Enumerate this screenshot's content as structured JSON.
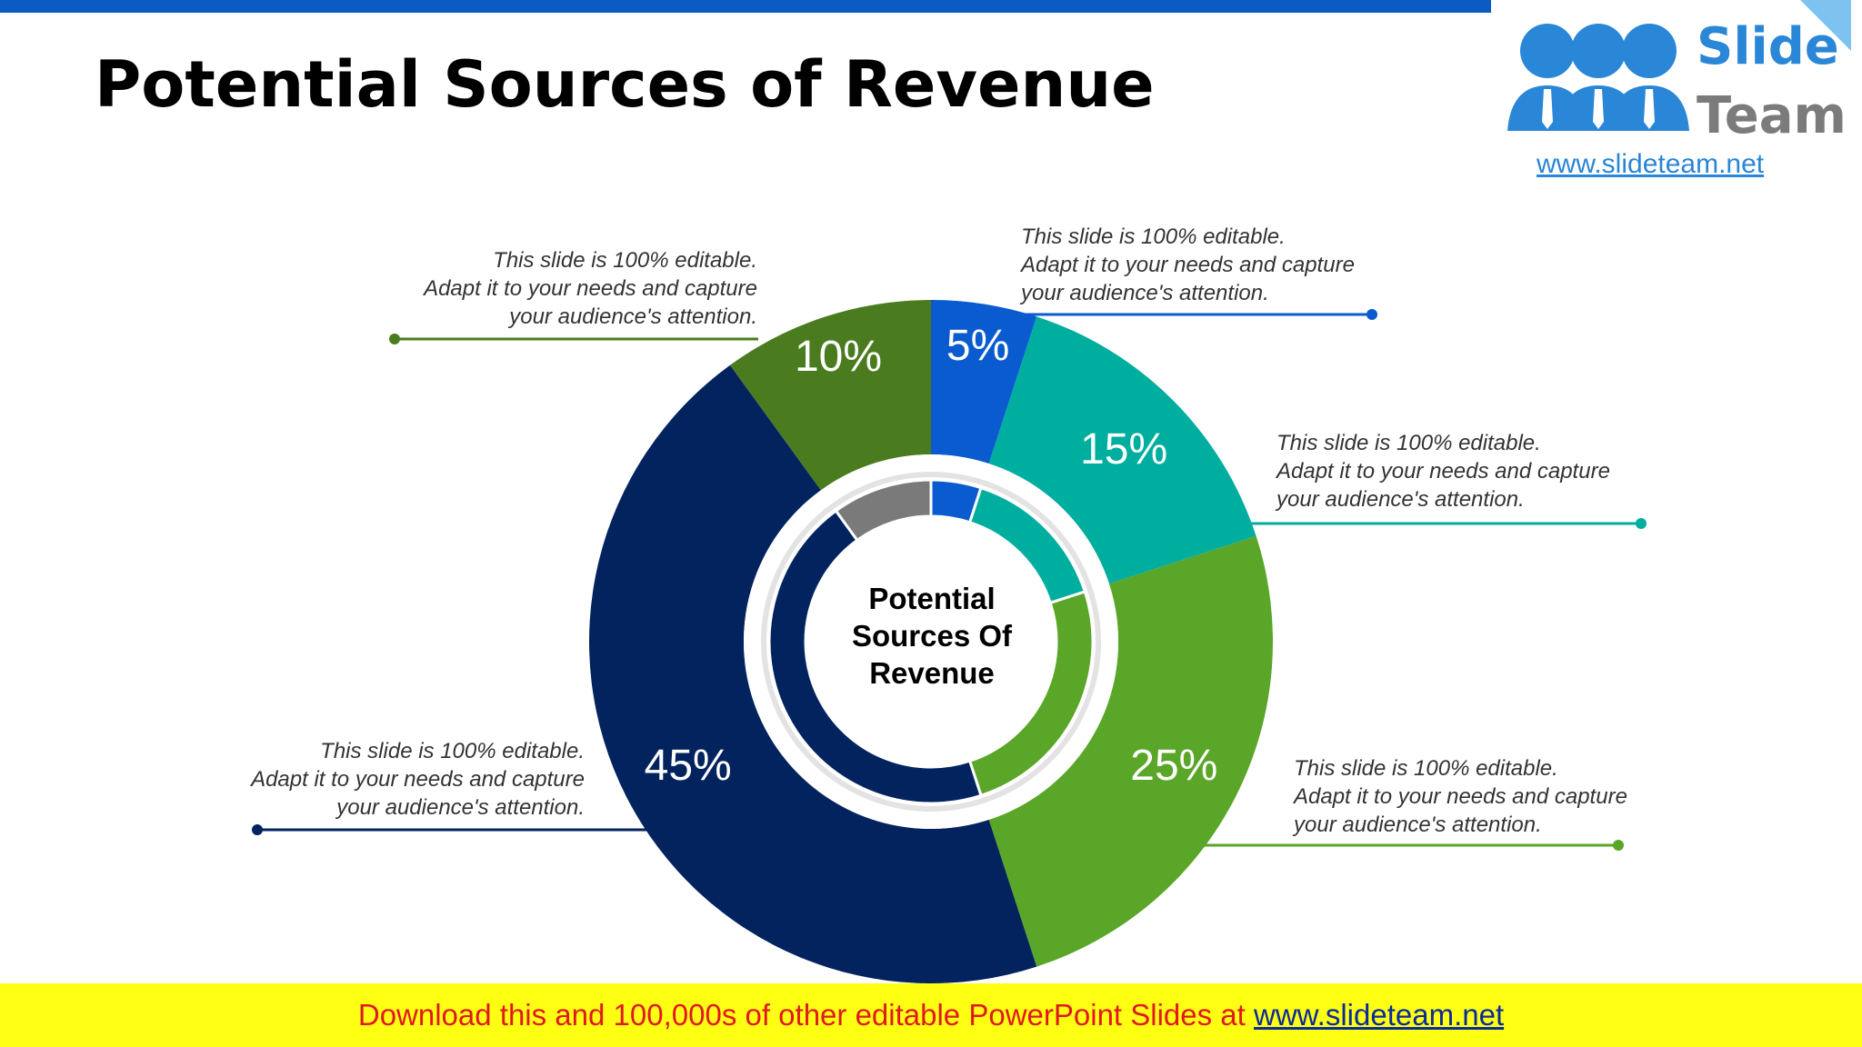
{
  "title": "Potential Sources of Revenue",
  "logo": {
    "word1": "Slide",
    "word2": "Team",
    "url": "www.slideteam.net"
  },
  "callouts": [
    {
      "lines": [
        "This slide is 100% editable.",
        "Adapt it to your needs and capture",
        "your audience's attention."
      ]
    },
    {
      "lines": [
        "This slide is 100% editable.",
        "Adapt it to your needs and capture",
        "your audience's attention."
      ]
    },
    {
      "lines": [
        "This slide is 100% editable.",
        "Adapt it to your needs and capture",
        "your audience's attention."
      ]
    },
    {
      "lines": [
        "This slide is 100% editable.",
        "Adapt it to your needs and capture",
        "your audience's attention."
      ]
    },
    {
      "lines": [
        "This slide is 100% editable.",
        "Adapt it to your needs and capture",
        "your audience's attention."
      ]
    }
  ],
  "footer": {
    "text": "Download this and 100,000s of other editable PowerPoint Slides at ",
    "link": "www.slideteam.net"
  },
  "chart_data": {
    "type": "pie",
    "subtype": "donut",
    "center_label": [
      "Potential",
      "Sources Of",
      "Revenue"
    ],
    "categories": [
      "",
      "",
      "",
      "",
      ""
    ],
    "values": [
      5,
      15,
      25,
      45,
      10
    ],
    "labels": [
      "5%",
      "15%",
      "25%",
      "45%",
      "10%"
    ],
    "colors": [
      "#0a5bd0",
      "#00aea0",
      "#5aa628",
      "#03235f",
      "#4a7c1f"
    ],
    "inner_ring": {
      "colors": [
        "#0a5bd0",
        "#00aea0",
        "#5aa628",
        "#03235f",
        "#7a7a7a"
      ]
    }
  }
}
